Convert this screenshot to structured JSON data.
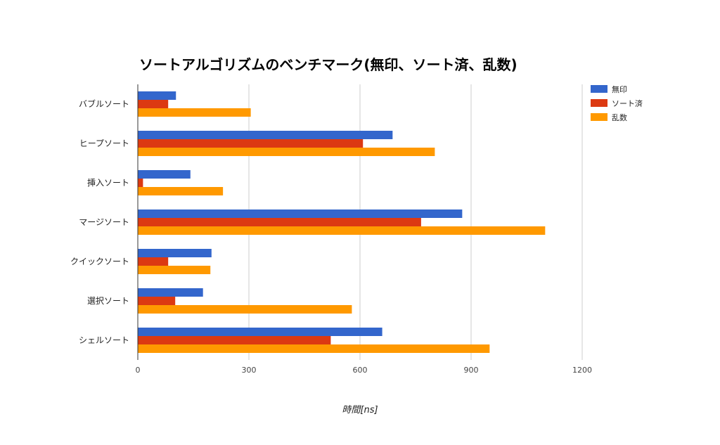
{
  "chart_data": {
    "type": "bar",
    "orientation": "horizontal",
    "title": "ソートアルゴリズムのベンチマーク(無印、ソート済、乱数)",
    "xlabel": "時間[ns]",
    "ylabel": "",
    "xlim": [
      0,
      1200
    ],
    "xticks": [
      0,
      300,
      600,
      900,
      1200
    ],
    "grid": true,
    "legend_position": "top-right",
    "categories": [
      "バブルソート",
      "ヒープソート",
      "挿入ソート",
      "マージソート",
      "クイックソート",
      "選択ソート",
      "シェルソート"
    ],
    "series": [
      {
        "name": "無印",
        "color": "#3366cc",
        "values": [
          103,
          688,
          142,
          876,
          199,
          176,
          660
        ]
      },
      {
        "name": "ソート済",
        "color": "#dc3912",
        "values": [
          82,
          608,
          14,
          765,
          82,
          101,
          521
        ]
      },
      {
        "name": "乱数",
        "color": "#ff9900",
        "values": [
          305,
          802,
          230,
          1100,
          196,
          578,
          950
        ]
      }
    ]
  }
}
